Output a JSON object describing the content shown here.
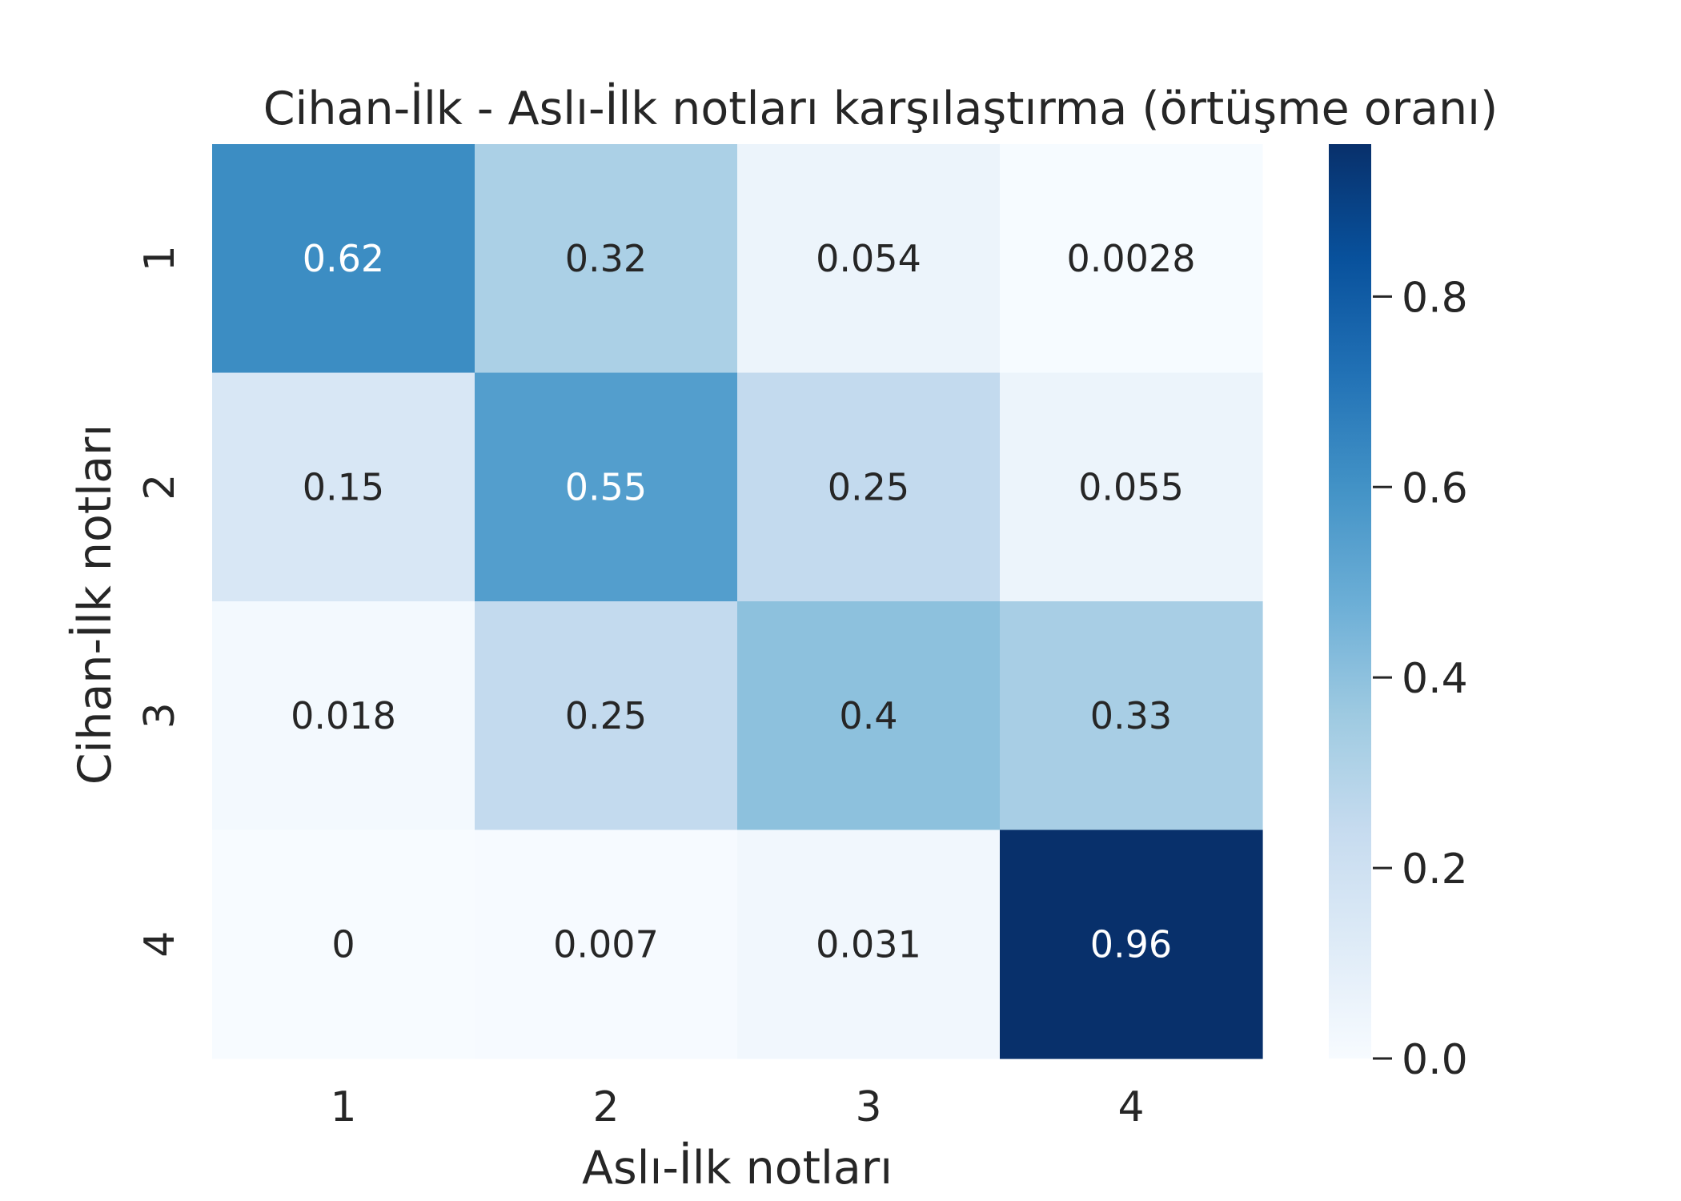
{
  "chart_data": {
    "type": "heatmap",
    "title": "Cihan-İlk - Aslı-İlk notları karşılaştırma (örtüşme oranı)",
    "xlabel": "Aslı-İlk notları",
    "ylabel": "Cihan-İlk notları",
    "x_categories": [
      "1",
      "2",
      "3",
      "4"
    ],
    "y_categories": [
      "1",
      "2",
      "3",
      "4"
    ],
    "values": [
      [
        0.62,
        0.32,
        0.054,
        0.0028
      ],
      [
        0.15,
        0.55,
        0.25,
        0.055
      ],
      [
        0.018,
        0.25,
        0.4,
        0.33
      ],
      [
        0,
        0.007,
        0.031,
        0.96
      ]
    ],
    "value_labels": [
      [
        "0.62",
        "0.32",
        "0.054",
        "0.0028"
      ],
      [
        "0.15",
        "0.55",
        "0.25",
        "0.055"
      ],
      [
        "0.018",
        "0.25",
        "0.4",
        "0.33"
      ],
      [
        "0",
        "0.007",
        "0.031",
        "0.96"
      ]
    ],
    "colormap": "Blues",
    "colorbar": {
      "range": [
        0,
        0.96
      ],
      "ticks": [
        0.0,
        0.2,
        0.4,
        0.6,
        0.8
      ],
      "tick_labels": [
        "0.0",
        "0.2",
        "0.4",
        "0.6",
        "0.8"
      ]
    },
    "grid": false,
    "annotations_text_colors": {
      "light": "#ffffff",
      "dark": "#262626"
    }
  }
}
